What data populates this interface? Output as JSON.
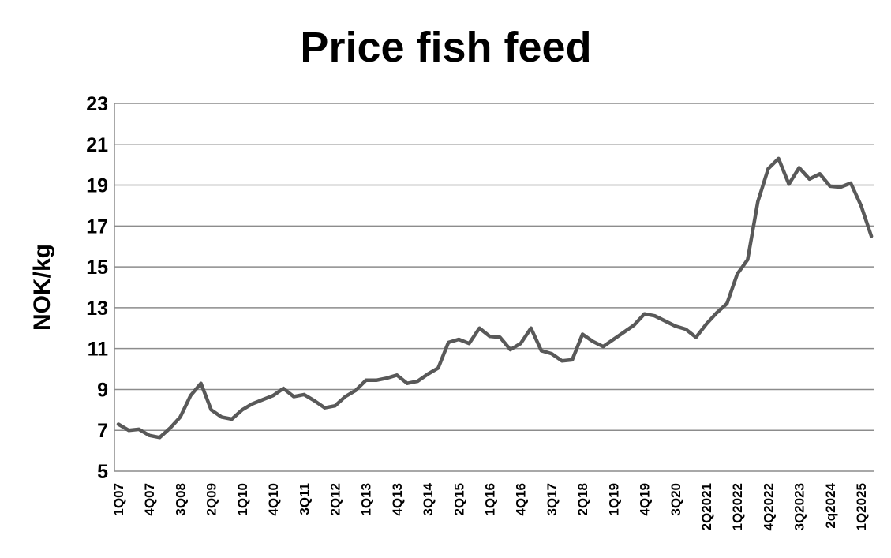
{
  "chart_data": {
    "type": "line",
    "title": "Price fish feed",
    "ylabel": "NOK/kg",
    "xlabel": "",
    "ylim": [
      5,
      23
    ],
    "yticks": [
      5,
      7,
      9,
      11,
      13,
      15,
      17,
      19,
      21,
      23
    ],
    "grid": true,
    "legend": "none",
    "x_tick_labels": [
      "1Q07",
      "4Q07",
      "3Q08",
      "2Q09",
      "1Q10",
      "4Q10",
      "3Q11",
      "2Q12",
      "1Q13",
      "4Q13",
      "3Q14",
      "2Q15",
      "1Q16",
      "4Q16",
      "3Q17",
      "2Q18",
      "1Q19",
      "4Q19",
      "3Q20",
      "2Q2021",
      "1Q2022",
      "4Q2022",
      "3Q2023",
      "2q2024",
      "1Q2025"
    ],
    "series": [
      {
        "color": "#595959",
        "values": [
          7.3,
          7.0,
          7.05,
          6.75,
          6.65,
          7.1,
          7.65,
          8.7,
          9.3,
          8.0,
          7.65,
          7.55,
          8.0,
          8.3,
          8.5,
          8.7,
          9.05,
          8.65,
          8.75,
          8.45,
          8.1,
          8.2,
          8.65,
          8.95,
          9.45,
          9.45,
          9.55,
          9.7,
          9.3,
          9.4,
          9.75,
          10.05,
          11.3,
          11.45,
          11.25,
          12.0,
          11.6,
          11.55,
          10.95,
          11.25,
          12.0,
          10.9,
          10.75,
          10.4,
          10.45,
          11.7,
          11.35,
          11.1,
          11.45,
          11.8,
          12.15,
          12.7,
          12.6,
          12.35,
          12.1,
          11.95,
          11.55,
          12.2,
          12.75,
          13.2,
          14.65,
          15.35,
          18.2,
          19.8,
          20.3,
          19.05,
          19.85,
          19.3,
          19.55,
          18.95,
          18.9,
          19.1,
          18.0,
          16.5
        ]
      }
    ]
  }
}
